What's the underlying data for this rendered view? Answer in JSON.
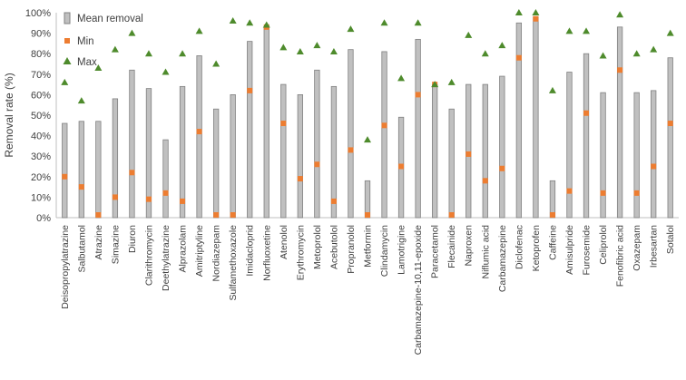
{
  "chart_data": {
    "type": "bar",
    "ylabel": "Removal rate (%)",
    "xlabel": "",
    "ylim": [
      0,
      100
    ],
    "y_ticks": [
      0,
      10,
      20,
      30,
      40,
      50,
      60,
      70,
      80,
      90,
      100
    ],
    "y_tick_suffix": "%",
    "grid": false,
    "legend_position": "top-left",
    "categories": [
      "Deisopropylatrazine",
      "Salbutamol",
      "Atrazine",
      "Simazine",
      "Diuron",
      "Clarithromycin",
      "Deethylatrazine",
      "Alprazolam",
      "Amitriptyline",
      "Nordiazepam",
      "Sulfamethoxazole",
      "Imidacloprid",
      "Norfluoxetine",
      "Atenolol",
      "Erythromycin",
      "Metoprolol",
      "Acebutolol",
      "Propranolol",
      "Metformin",
      "Clindamycin",
      "Lamotrigine",
      "Carbamazepine-10,11-epoxide",
      "Paracetamol",
      "Flecainide",
      "Naproxen",
      "Niflumic acid",
      "Carbamazepine",
      "Diclofenac",
      "Ketoprofen",
      "Caffeine",
      "Amisulpride",
      "Furosemide",
      "Celiprolol",
      "Fenofibric acid",
      "Oxazepam",
      "Irbesartan",
      "Sotalol"
    ],
    "series": [
      {
        "name": "Mean removal",
        "type": "bar",
        "color": "#c0c0c0",
        "stroke": "#808080",
        "values": [
          46,
          47,
          47,
          58,
          72,
          63,
          38,
          64,
          79,
          53,
          60,
          86,
          93,
          65,
          60,
          72,
          64,
          82,
          18,
          81,
          49,
          87,
          65,
          53,
          65,
          65,
          69,
          95,
          98,
          18,
          71,
          80,
          61,
          93,
          61,
          62,
          78
        ]
      },
      {
        "name": "Min",
        "type": "marker-square",
        "color": "#ed7d31",
        "values": [
          20,
          15,
          0,
          10,
          22,
          9,
          12,
          8,
          42,
          0,
          0,
          62,
          93,
          46,
          19,
          26,
          8,
          33,
          0,
          45,
          25,
          60,
          65,
          0,
          31,
          18,
          24,
          78,
          97,
          0,
          13,
          51,
          12,
          72,
          12,
          25,
          46
        ]
      },
      {
        "name": "Max",
        "type": "marker-triangle",
        "color": "#4e8b2c",
        "values": [
          66,
          57,
          73,
          82,
          90,
          80,
          71,
          80,
          91,
          75,
          96,
          95,
          94,
          83,
          81,
          84,
          81,
          92,
          38,
          95,
          68,
          95,
          65,
          66,
          89,
          80,
          84,
          100,
          100,
          62,
          91,
          91,
          79,
          99,
          80,
          82,
          90
        ]
      }
    ]
  }
}
